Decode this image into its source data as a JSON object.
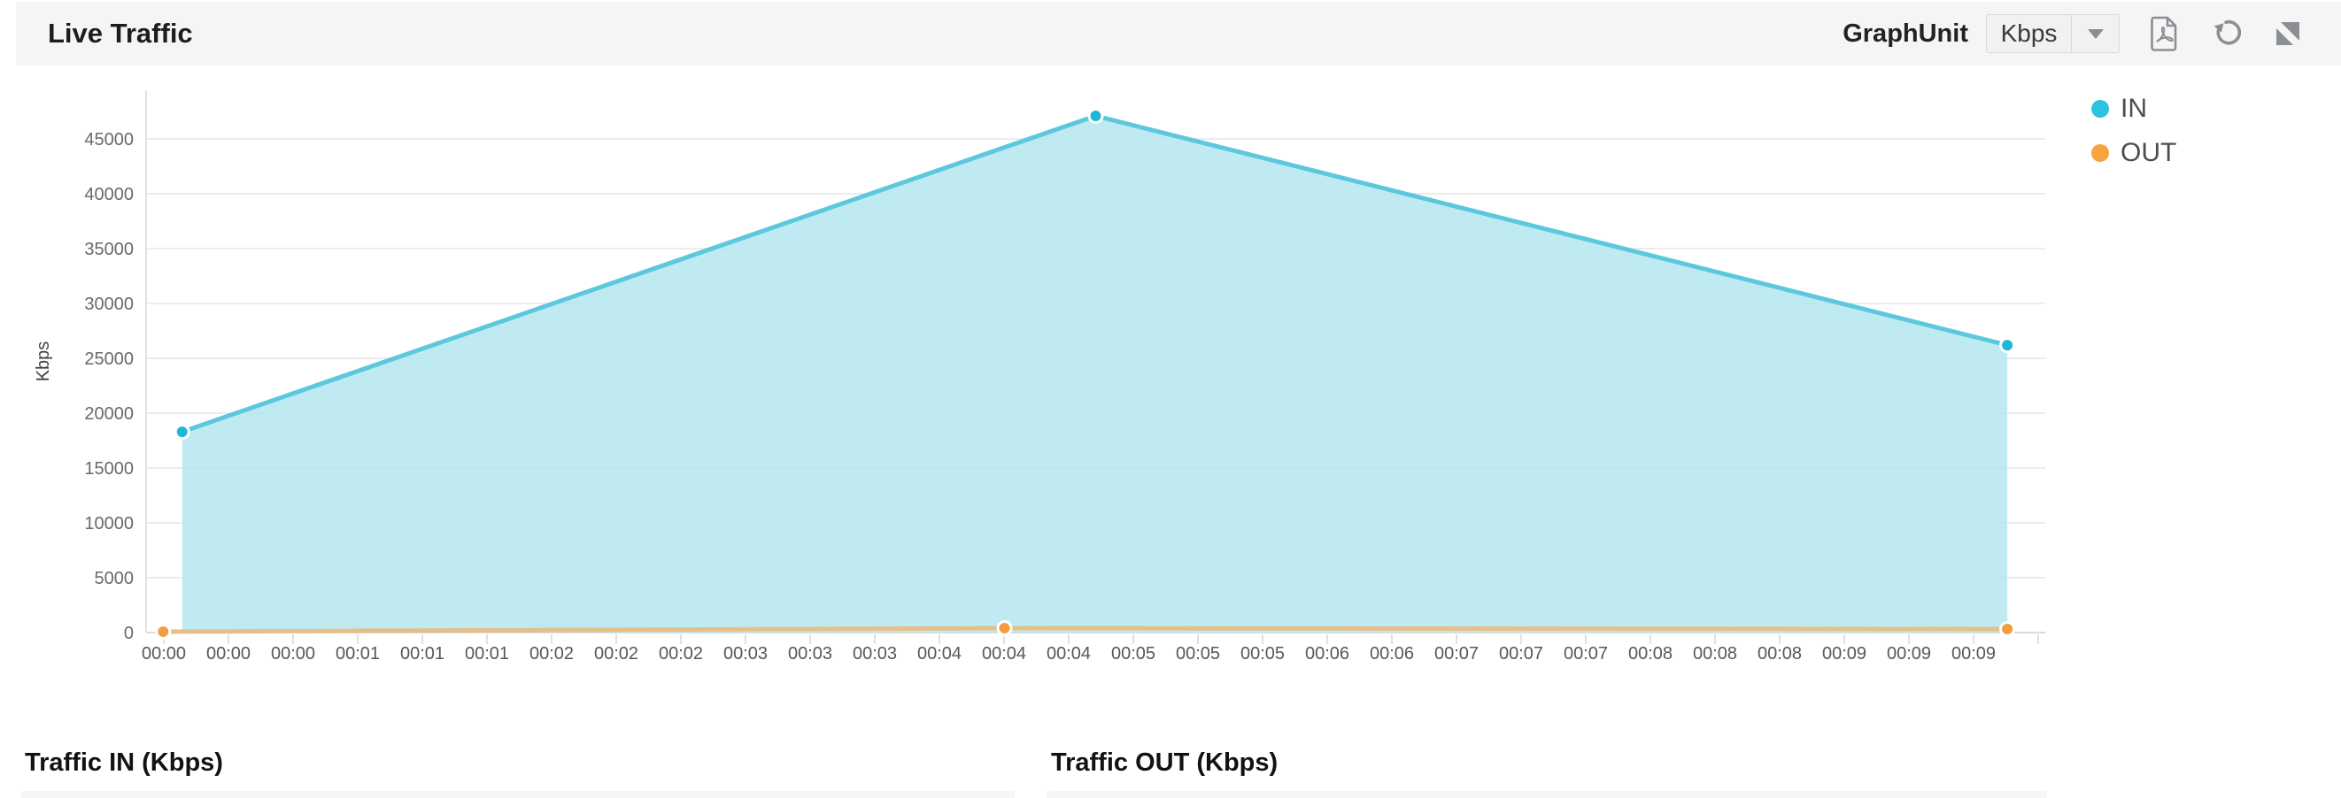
{
  "header": {
    "title": "Live Traffic",
    "graph_unit_label": "GraphUnit",
    "unit_select": {
      "value": "Kbps"
    },
    "icons": {
      "export_pdf": "export-pdf",
      "refresh": "refresh",
      "collapse": "collapse"
    }
  },
  "legend": [
    {
      "label": "IN",
      "color": "#2cc3e0"
    },
    {
      "label": "OUT",
      "color": "#f6a440"
    }
  ],
  "chart_data": {
    "type": "area",
    "title": "Live Traffic",
    "unit": "Kbps",
    "ylabel": "Kbps",
    "ylim": [
      0,
      50000
    ],
    "ytick_step": 5000,
    "yticks": [
      0,
      5000,
      10000,
      15000,
      20000,
      25000,
      30000,
      35000,
      40000,
      45000
    ],
    "grid": "horizontal",
    "legend_position": "right",
    "x_labels": [
      "00:00",
      "00:00",
      "00:00",
      "00:01",
      "00:01",
      "00:01",
      "00:02",
      "00:02",
      "00:02",
      "00:03",
      "00:03",
      "00:03",
      "00:04",
      "00:04",
      "00:04",
      "00:05",
      "00:05",
      "00:05",
      "00:06",
      "00:06",
      "00:07",
      "00:07",
      "00:07",
      "00:08",
      "00:08",
      "00:08",
      "00:09",
      "00:09",
      "00:09"
    ],
    "series": [
      {
        "name": "IN",
        "line_color": "#5cc8dd",
        "fill_color": "#b5e6f0",
        "fill_opacity": 0.85,
        "marker_color": "#1fb7d7",
        "points": [
          {
            "time": "00:00",
            "value": 18300,
            "x_frac": 0.019
          },
          {
            "time": "00:04",
            "value": 47100,
            "x_frac": 0.5
          },
          {
            "time": "00:09",
            "value": 26200,
            "x_frac": 0.98
          }
        ]
      },
      {
        "name": "OUT",
        "line_color": "#e4c088",
        "fill_color": null,
        "fill_opacity": 0,
        "marker_color": "#f49d3f",
        "points": [
          {
            "time": "00:00",
            "value": 80,
            "x_frac": 0.009
          },
          {
            "time": "00:04",
            "value": 400,
            "x_frac": 0.452
          },
          {
            "time": "00:09",
            "value": 320,
            "x_frac": 0.98
          }
        ]
      }
    ]
  },
  "sections": {
    "traffic_in_title": "Traffic IN (Kbps)",
    "traffic_out_title": "Traffic OUT (Kbps)"
  }
}
